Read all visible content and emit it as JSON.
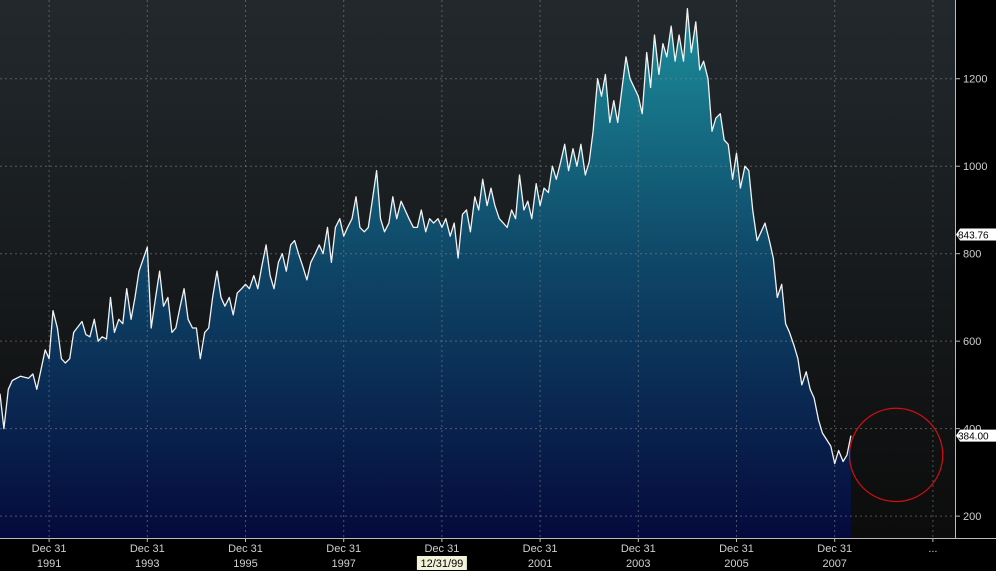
{
  "chart_data": {
    "type": "area",
    "title": "",
    "xlabel": "",
    "ylabel": "",
    "ylim": [
      150,
      1380
    ],
    "grid": true,
    "x_tick_labels": [
      {
        "top": "Dec 31",
        "bottom": "1991",
        "t": 1992.0
      },
      {
        "top": "Dec 31",
        "bottom": "1993",
        "t": 1994.0
      },
      {
        "top": "Dec 31",
        "bottom": "1995",
        "t": 1996.0
      },
      {
        "top": "Dec 31",
        "bottom": "1997",
        "t": 1998.0
      },
      {
        "top": "Dec 31",
        "bottom": "12/31/99",
        "t": 2000.0,
        "highlight": true
      },
      {
        "top": "Dec 31",
        "bottom": "2001",
        "t": 2002.0
      },
      {
        "top": "Dec 31",
        "bottom": "2003",
        "t": 2004.0
      },
      {
        "top": "Dec 31",
        "bottom": "2005",
        "t": 2006.0
      },
      {
        "top": "Dec 31",
        "bottom": "2007",
        "t": 2008.0
      },
      {
        "top": "...",
        "bottom": "",
        "t": 2010.0
      }
    ],
    "y_ticks": [
      200,
      400,
      600,
      800,
      1000,
      1200
    ],
    "price_flags": [
      {
        "label": "843.76",
        "value": 843.76
      },
      {
        "label": "384.00",
        "value": 384.0
      }
    ],
    "annotation": {
      "type": "circle",
      "center_t": 2009.25,
      "center_value": 340,
      "radius_years": 0.95,
      "color": "#d01010"
    },
    "series": [
      {
        "color": "#f2f2f2",
        "points": [
          [
            1991.0,
            480
          ],
          [
            1991.08,
            400
          ],
          [
            1991.17,
            490
          ],
          [
            1991.25,
            510
          ],
          [
            1991.42,
            520
          ],
          [
            1991.58,
            515
          ],
          [
            1991.67,
            525
          ],
          [
            1991.75,
            490
          ],
          [
            1991.92,
            580
          ],
          [
            1992.0,
            560
          ],
          [
            1992.08,
            670
          ],
          [
            1992.17,
            630
          ],
          [
            1992.25,
            560
          ],
          [
            1992.33,
            550
          ],
          [
            1992.42,
            560
          ],
          [
            1992.5,
            620
          ],
          [
            1992.67,
            645
          ],
          [
            1992.75,
            615
          ],
          [
            1992.83,
            610
          ],
          [
            1992.92,
            650
          ],
          [
            1993.0,
            600
          ],
          [
            1993.08,
            610
          ],
          [
            1993.17,
            605
          ],
          [
            1993.25,
            700
          ],
          [
            1993.33,
            620
          ],
          [
            1993.42,
            650
          ],
          [
            1993.5,
            640
          ],
          [
            1993.58,
            720
          ],
          [
            1993.67,
            650
          ],
          [
            1993.75,
            700
          ],
          [
            1993.83,
            760
          ],
          [
            1994.0,
            815
          ],
          [
            1994.08,
            630
          ],
          [
            1994.17,
            700
          ],
          [
            1994.25,
            760
          ],
          [
            1994.33,
            680
          ],
          [
            1994.42,
            700
          ],
          [
            1994.5,
            620
          ],
          [
            1994.58,
            630
          ],
          [
            1994.67,
            680
          ],
          [
            1994.75,
            720
          ],
          [
            1994.83,
            650
          ],
          [
            1994.92,
            630
          ],
          [
            1995.0,
            630
          ],
          [
            1995.08,
            560
          ],
          [
            1995.17,
            620
          ],
          [
            1995.25,
            630
          ],
          [
            1995.33,
            700
          ],
          [
            1995.42,
            760
          ],
          [
            1995.5,
            700
          ],
          [
            1995.58,
            680
          ],
          [
            1995.67,
            700
          ],
          [
            1995.75,
            660
          ],
          [
            1995.83,
            710
          ],
          [
            1995.92,
            720
          ],
          [
            1996.0,
            730
          ],
          [
            1996.08,
            720
          ],
          [
            1996.17,
            750
          ],
          [
            1996.25,
            720
          ],
          [
            1996.33,
            770
          ],
          [
            1996.42,
            820
          ],
          [
            1996.5,
            750
          ],
          [
            1996.58,
            720
          ],
          [
            1996.67,
            780
          ],
          [
            1996.75,
            800
          ],
          [
            1996.83,
            760
          ],
          [
            1996.92,
            820
          ],
          [
            1997.0,
            830
          ],
          [
            1997.08,
            800
          ],
          [
            1997.17,
            770
          ],
          [
            1997.25,
            740
          ],
          [
            1997.33,
            780
          ],
          [
            1997.42,
            800
          ],
          [
            1997.5,
            820
          ],
          [
            1997.58,
            800
          ],
          [
            1997.67,
            860
          ],
          [
            1997.75,
            780
          ],
          [
            1997.83,
            860
          ],
          [
            1997.92,
            880
          ],
          [
            1998.0,
            840
          ],
          [
            1998.08,
            860
          ],
          [
            1998.17,
            880
          ],
          [
            1998.25,
            930
          ],
          [
            1998.33,
            860
          ],
          [
            1998.42,
            850
          ],
          [
            1998.5,
            860
          ],
          [
            1998.58,
            920
          ],
          [
            1998.67,
            990
          ],
          [
            1998.75,
            880
          ],
          [
            1998.83,
            850
          ],
          [
            1998.92,
            870
          ],
          [
            1999.0,
            930
          ],
          [
            1999.08,
            880
          ],
          [
            1999.17,
            920
          ],
          [
            1999.25,
            900
          ],
          [
            1999.33,
            880
          ],
          [
            1999.42,
            860
          ],
          [
            1999.5,
            860
          ],
          [
            1999.58,
            900
          ],
          [
            1999.67,
            850
          ],
          [
            1999.75,
            880
          ],
          [
            1999.83,
            870
          ],
          [
            1999.92,
            880
          ],
          [
            2000.0,
            860
          ],
          [
            2000.08,
            880
          ],
          [
            2000.17,
            840
          ],
          [
            2000.25,
            870
          ],
          [
            2000.33,
            790
          ],
          [
            2000.42,
            890
          ],
          [
            2000.5,
            900
          ],
          [
            2000.58,
            850
          ],
          [
            2000.67,
            930
          ],
          [
            2000.75,
            900
          ],
          [
            2000.83,
            970
          ],
          [
            2000.92,
            910
          ],
          [
            2001.0,
            950
          ],
          [
            2001.08,
            910
          ],
          [
            2001.17,
            880
          ],
          [
            2001.25,
            870
          ],
          [
            2001.33,
            860
          ],
          [
            2001.42,
            900
          ],
          [
            2001.5,
            880
          ],
          [
            2001.58,
            980
          ],
          [
            2001.67,
            900
          ],
          [
            2001.75,
            920
          ],
          [
            2001.83,
            880
          ],
          [
            2001.92,
            960
          ],
          [
            2002.0,
            910
          ],
          [
            2002.08,
            950
          ],
          [
            2002.17,
            940
          ],
          [
            2002.25,
            1000
          ],
          [
            2002.33,
            970
          ],
          [
            2002.42,
            1010
          ],
          [
            2002.5,
            1050
          ],
          [
            2002.58,
            990
          ],
          [
            2002.67,
            1040
          ],
          [
            2002.75,
            1000
          ],
          [
            2002.83,
            1050
          ],
          [
            2002.92,
            980
          ],
          [
            2003.0,
            1010
          ],
          [
            2003.08,
            1080
          ],
          [
            2003.17,
            1200
          ],
          [
            2003.25,
            1160
          ],
          [
            2003.33,
            1210
          ],
          [
            2003.42,
            1100
          ],
          [
            2003.5,
            1150
          ],
          [
            2003.58,
            1100
          ],
          [
            2003.67,
            1180
          ],
          [
            2003.75,
            1250
          ],
          [
            2003.83,
            1200
          ],
          [
            2004.0,
            1160
          ],
          [
            2004.08,
            1120
          ],
          [
            2004.17,
            1260
          ],
          [
            2004.25,
            1180
          ],
          [
            2004.33,
            1300
          ],
          [
            2004.42,
            1210
          ],
          [
            2004.5,
            1280
          ],
          [
            2004.58,
            1250
          ],
          [
            2004.67,
            1320
          ],
          [
            2004.75,
            1240
          ],
          [
            2004.83,
            1300
          ],
          [
            2004.92,
            1240
          ],
          [
            2005.0,
            1360
          ],
          [
            2005.08,
            1260
          ],
          [
            2005.17,
            1330
          ],
          [
            2005.25,
            1220
          ],
          [
            2005.33,
            1240
          ],
          [
            2005.42,
            1200
          ],
          [
            2005.5,
            1080
          ],
          [
            2005.58,
            1110
          ],
          [
            2005.67,
            1120
          ],
          [
            2005.75,
            1060
          ],
          [
            2005.83,
            1050
          ],
          [
            2005.92,
            970
          ],
          [
            2006.0,
            1030
          ],
          [
            2006.08,
            950
          ],
          [
            2006.17,
            1000
          ],
          [
            2006.25,
            990
          ],
          [
            2006.33,
            900
          ],
          [
            2006.42,
            830
          ],
          [
            2006.5,
            850
          ],
          [
            2006.58,
            870
          ],
          [
            2006.67,
            830
          ],
          [
            2006.75,
            790
          ],
          [
            2006.83,
            700
          ],
          [
            2006.92,
            730
          ],
          [
            2007.0,
            640
          ],
          [
            2007.08,
            620
          ],
          [
            2007.17,
            590
          ],
          [
            2007.25,
            560
          ],
          [
            2007.33,
            500
          ],
          [
            2007.42,
            530
          ],
          [
            2007.5,
            490
          ],
          [
            2007.58,
            470
          ],
          [
            2007.67,
            420
          ],
          [
            2007.75,
            390
          ],
          [
            2007.92,
            360
          ],
          [
            2008.0,
            320
          ],
          [
            2008.08,
            350
          ],
          [
            2008.17,
            325
          ],
          [
            2008.25,
            340
          ],
          [
            2008.33,
            384
          ]
        ]
      }
    ]
  }
}
